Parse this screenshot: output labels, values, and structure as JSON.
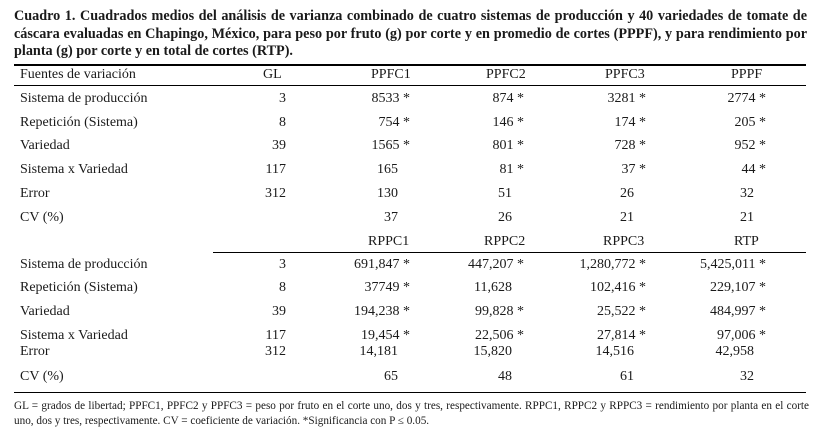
{
  "caption": "Cuadro 1. Cuadrados medios del análisis de varianza combinado de cuatro sistemas de producción y 40 variedades de tomate de cáscara evaluadas en Chapingo, México, para peso por fruto (g) por corte y en promedio de cortes (PPPF), y para rendimiento por planta (g) por corte y en total de cortes (RTP).",
  "header": {
    "source": "Fuentes de variación",
    "gl": "GL",
    "c1": "PPFC1",
    "c2": "PPFC2",
    "c3": "PPFC3",
    "c4": "PPPF"
  },
  "block1": [
    {
      "label": "Sistema de producción",
      "gl": "3",
      "c1": "8533 *",
      "c2": "874 *",
      "c3": "3281 *",
      "c4": "2774 *"
    },
    {
      "label": "Repetición (Sistema)",
      "gl": "8",
      "c1": "754 *",
      "c2": "146 *",
      "c3": "174 *",
      "c4": "205 *"
    },
    {
      "label": "Variedad",
      "gl": "39",
      "c1": "1565 *",
      "c2": "801 *",
      "c3": "728 *",
      "c4": "952 *"
    },
    {
      "label": "Sistema x Variedad",
      "gl": "117",
      "c1": "165",
      "c2": "81 *",
      "c3": "37 *",
      "c4": "44 *"
    },
    {
      "label": "Error",
      "gl": "312",
      "c1": "130",
      "c2": "51",
      "c3": "26",
      "c4": "32"
    },
    {
      "label": "CV (%)",
      "gl": "",
      "c1": "37",
      "c2": "26",
      "c3": "21",
      "c4": "21"
    }
  ],
  "header2": {
    "c1": "RPPC1",
    "c2": "RPPC2",
    "c3": "RPPC3",
    "c4": "RTP"
  },
  "block2": [
    {
      "label": "Sistema de producción",
      "gl": "3",
      "c1": "691,847 *",
      "c2": "447,207 *",
      "c3": "1,280,772 *",
      "c4": "5,425,011 *"
    },
    {
      "label": "Repetición (Sistema)",
      "gl": "8",
      "c1": "37749 *",
      "c2": "11,628",
      "c3": "102,416 *",
      "c4": "229,107 *"
    },
    {
      "label": "Variedad",
      "gl": "39",
      "c1": "194,238 *",
      "c2": "99,828 *",
      "c3": "25,522 *",
      "c4": "484,997 *"
    },
    {
      "label": "Sistema x Variedad",
      "gl": "117",
      "c1": "19,454 *",
      "c2": "22,506 *",
      "c3": "27,814 *",
      "c4": "97,006 *"
    },
    {
      "label": "Error",
      "gl": "312",
      "c1": "14,181",
      "c2": "15,820",
      "c3": "14,516",
      "c4": "42,958"
    },
    {
      "label": "CV (%)",
      "gl": "",
      "c1": "65",
      "c2": "48",
      "c3": "61",
      "c4": "32"
    }
  ],
  "footnote": "GL = grados de libertad; PPFC1, PPFC2 y PPFC3 = peso por fruto en el corte uno, dos y tres, respectivamente. RPPC1, RPPC2 y RPPC3 = rendimiento por planta en el corte uno, dos y tres, respectivamente. CV = coeficiente de variación. *Significancia con P ≤ 0.05."
}
